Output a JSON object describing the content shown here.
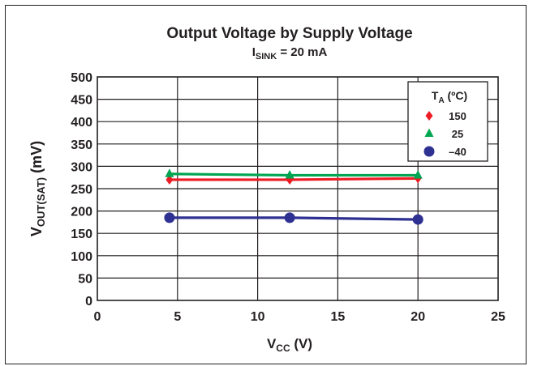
{
  "chart_data": {
    "type": "line",
    "title": "Output Voltage by Supply Voltage",
    "subtitle": {
      "main": "I",
      "sub": "SINK",
      "rest": " = 20 mA"
    },
    "xlabel": {
      "main": "V",
      "sub": "CC",
      "rest": " (V)"
    },
    "ylabel": {
      "main": "V",
      "sub": "OUT(SAT)",
      "rest": " (mV)"
    },
    "xlim": [
      0,
      25
    ],
    "ylim": [
      0,
      500
    ],
    "xticks": [
      0,
      5,
      10,
      15,
      20,
      25
    ],
    "yticks": [
      0,
      50,
      100,
      150,
      200,
      250,
      300,
      350,
      400,
      450,
      500
    ],
    "grid": true,
    "legend_position": "top-right",
    "legend_title": {
      "main": "T",
      "sub": "A",
      "rest": " (ºC)"
    },
    "series": [
      {
        "name": "150",
        "marker": "diamond",
        "color": "#ed1c24",
        "x": [
          4.5,
          12,
          20
        ],
        "y": [
          270,
          270,
          273
        ]
      },
      {
        "name": "25",
        "marker": "triangle",
        "color": "#00a651",
        "x": [
          4.5,
          12,
          20
        ],
        "y": [
          283,
          280,
          280
        ]
      },
      {
        "name": "–40",
        "marker": "circle",
        "color": "#2e3192",
        "x": [
          4.5,
          12,
          20
        ],
        "y": [
          185,
          185,
          181
        ]
      }
    ]
  }
}
